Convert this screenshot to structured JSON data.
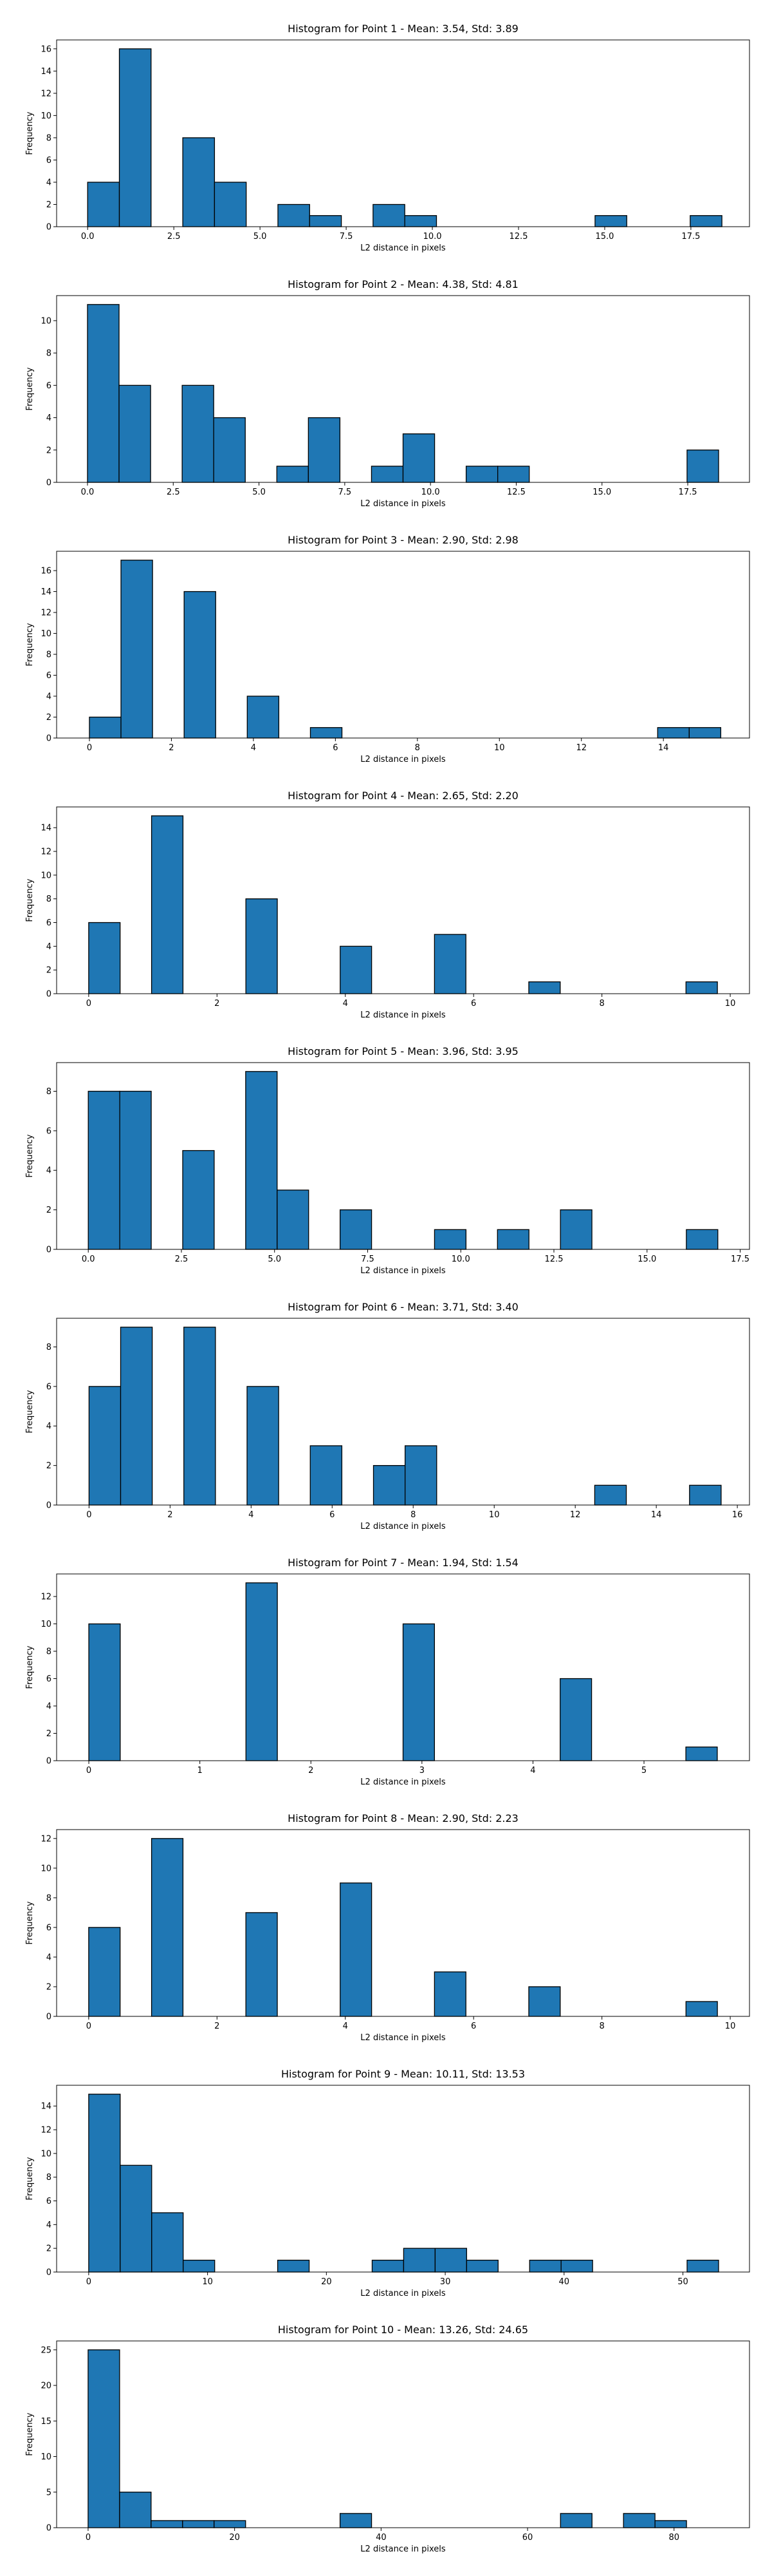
{
  "chart_data": [
    {
      "type": "bar",
      "title": "Histogram for Point 1 - Mean: 3.54, Std: 3.89",
      "xlabel": "L2 distance in pixels",
      "ylabel": "Frequency",
      "xlim": [
        -0.9,
        19.2
      ],
      "ylim": [
        0,
        16.8
      ],
      "xticks": [
        0,
        2.5,
        5,
        7.5,
        10,
        12.5,
        15,
        17.5
      ],
      "xtick_labels": [
        "0.0",
        "2.5",
        "5.0",
        "7.5",
        "10.0",
        "12.5",
        "15.0",
        "17.5"
      ],
      "yticks": [
        0,
        2,
        4,
        6,
        8,
        10,
        12,
        14,
        16
      ],
      "bin_start": 0,
      "bin_width": 0.92,
      "values": [
        4,
        16,
        0,
        8,
        4,
        0,
        2,
        1,
        0,
        2,
        1,
        0,
        0,
        0,
        0,
        0,
        1,
        0,
        0,
        1
      ]
    },
    {
      "type": "bar",
      "title": "Histogram for Point 2 - Mean: 4.38, Std: 4.81",
      "xlabel": "L2 distance in pixels",
      "ylabel": "Frequency",
      "xlim": [
        -0.9,
        19.3
      ],
      "ylim": [
        0,
        11.55
      ],
      "xticks": [
        0,
        2.5,
        5,
        7.5,
        10,
        12.5,
        15,
        17.5
      ],
      "xtick_labels": [
        "0.0",
        "2.5",
        "5.0",
        "7.5",
        "10.0",
        "12.5",
        "15.0",
        "17.5"
      ],
      "yticks": [
        0,
        2,
        4,
        6,
        8,
        10
      ],
      "bin_start": 0,
      "bin_width": 0.92,
      "values": [
        11,
        6,
        0,
        6,
        4,
        0,
        1,
        4,
        0,
        1,
        3,
        0,
        1,
        1,
        0,
        0,
        0,
        0,
        0,
        2
      ]
    },
    {
      "type": "bar",
      "title": "Histogram for Point 3 - Mean: 2.90, Std: 2.98",
      "xlabel": "L2 distance in pixels",
      "ylabel": "Frequency",
      "xlim": [
        -0.8,
        16.1
      ],
      "ylim": [
        0,
        17.85
      ],
      "xticks": [
        0,
        2,
        4,
        6,
        8,
        10,
        12,
        14
      ],
      "xtick_labels": [
        "0",
        "2",
        "4",
        "6",
        "8",
        "10",
        "12",
        "14"
      ],
      "yticks": [
        0,
        2,
        4,
        6,
        8,
        10,
        12,
        14,
        16
      ],
      "bin_start": 0,
      "bin_width": 0.77,
      "values": [
        2,
        17,
        0,
        14,
        0,
        4,
        0,
        1,
        0,
        0,
        0,
        0,
        0,
        0,
        0,
        0,
        0,
        0,
        1,
        1
      ]
    },
    {
      "type": "bar",
      "title": "Histogram for Point 4 - Mean: 2.65, Std: 2.20",
      "xlabel": "L2 distance in pixels",
      "ylabel": "Frequency",
      "xlim": [
        -0.5,
        10.3
      ],
      "ylim": [
        0,
        15.75
      ],
      "xticks": [
        0,
        2,
        4,
        6,
        8,
        10
      ],
      "xtick_labels": [
        "0",
        "2",
        "4",
        "6",
        "8",
        "10"
      ],
      "yticks": [
        0,
        2,
        4,
        6,
        8,
        10,
        12,
        14
      ],
      "bin_start": 0,
      "bin_width": 0.49,
      "values": [
        6,
        0,
        15,
        0,
        0,
        8,
        0,
        0,
        4,
        0,
        0,
        5,
        0,
        0,
        1,
        0,
        0,
        0,
        0,
        1
      ]
    },
    {
      "type": "bar",
      "title": "Histogram for Point 5 - Mean: 3.96, Std: 3.95",
      "xlabel": "L2 distance in pixels",
      "ylabel": "Frequency",
      "xlim": [
        -0.85,
        17.75
      ],
      "ylim": [
        0,
        9.45
      ],
      "xticks": [
        0,
        2.5,
        5,
        7.5,
        10,
        12.5,
        15,
        17.5
      ],
      "xtick_labels": [
        "0.0",
        "2.5",
        "5.0",
        "7.5",
        "10.0",
        "12.5",
        "15.0",
        "17.5"
      ],
      "yticks": [
        0,
        2,
        4,
        6,
        8
      ],
      "bin_start": 0,
      "bin_width": 0.845,
      "values": [
        8,
        8,
        0,
        5,
        0,
        9,
        3,
        0,
        2,
        0,
        0,
        1,
        0,
        1,
        0,
        2,
        0,
        0,
        0,
        1
      ]
    },
    {
      "type": "bar",
      "title": "Histogram for Point 6 - Mean: 3.71, Std: 3.40",
      "xlabel": "L2 distance in pixels",
      "ylabel": "Frequency",
      "xlim": [
        -0.8,
        16.3
      ],
      "ylim": [
        0,
        9.45
      ],
      "xticks": [
        0,
        2,
        4,
        6,
        8,
        10,
        12,
        14,
        16
      ],
      "xtick_labels": [
        "0",
        "2",
        "4",
        "6",
        "8",
        "10",
        "12",
        "14",
        "16"
      ],
      "yticks": [
        0,
        2,
        4,
        6,
        8
      ],
      "bin_start": 0,
      "bin_width": 0.78,
      "values": [
        6,
        9,
        0,
        9,
        0,
        6,
        0,
        3,
        0,
        2,
        3,
        0,
        0,
        0,
        0,
        0,
        1,
        0,
        0,
        1
      ]
    },
    {
      "type": "bar",
      "title": "Histogram for Point 7 - Mean: 1.94, Std: 1.54",
      "xlabel": "L2 distance in pixels",
      "ylabel": "Frequency",
      "xlim": [
        -0.29,
        5.95
      ],
      "ylim": [
        0,
        13.65
      ],
      "xticks": [
        0,
        1,
        2,
        3,
        4,
        5
      ],
      "xtick_labels": [
        "0",
        "1",
        "2",
        "3",
        "4",
        "5"
      ],
      "yticks": [
        0,
        2,
        4,
        6,
        8,
        10,
        12
      ],
      "bin_start": 0,
      "bin_width": 0.283,
      "values": [
        10,
        0,
        0,
        0,
        0,
        13,
        0,
        0,
        0,
        0,
        10,
        0,
        0,
        0,
        0,
        6,
        0,
        0,
        0,
        1
      ]
    },
    {
      "type": "bar",
      "title": "Histogram for Point 8 - Mean: 2.90, Std: 2.23",
      "xlabel": "L2 distance in pixels",
      "ylabel": "Frequency",
      "xlim": [
        -0.5,
        10.3
      ],
      "ylim": [
        0,
        12.6
      ],
      "xticks": [
        0,
        2,
        4,
        6,
        8,
        10
      ],
      "xtick_labels": [
        "0",
        "2",
        "4",
        "6",
        "8",
        "10"
      ],
      "yticks": [
        0,
        2,
        4,
        6,
        8,
        10,
        12
      ],
      "bin_start": 0,
      "bin_width": 0.49,
      "values": [
        6,
        0,
        12,
        0,
        0,
        7,
        0,
        0,
        9,
        0,
        0,
        3,
        0,
        0,
        2,
        0,
        0,
        0,
        0,
        1
      ]
    },
    {
      "type": "bar",
      "title": "Histogram for Point 9 - Mean: 10.11, Std: 13.53",
      "xlabel": "L2 distance in pixels",
      "ylabel": "Frequency",
      "xlim": [
        -2.7,
        55.6
      ],
      "ylim": [
        0,
        15.75
      ],
      "xticks": [
        0,
        10,
        20,
        30,
        40,
        50
      ],
      "xtick_labels": [
        "0",
        "10",
        "20",
        "30",
        "40",
        "50"
      ],
      "yticks": [
        0,
        2,
        4,
        6,
        8,
        10,
        12,
        14
      ],
      "bin_start": 0,
      "bin_width": 2.65,
      "values": [
        15,
        9,
        5,
        1,
        0,
        0,
        1,
        0,
        0,
        1,
        2,
        2,
        1,
        0,
        1,
        1,
        0,
        0,
        0,
        1
      ]
    },
    {
      "type": "bar",
      "title": "Histogram for Point 10 - Mean: 13.26, Std: 24.65",
      "xlabel": "L2 distance in pixels",
      "ylabel": "Frequency",
      "xlim": [
        -4.3,
        90.3
      ],
      "ylim": [
        0,
        26.25
      ],
      "xticks": [
        0,
        20,
        40,
        60,
        80
      ],
      "xtick_labels": [
        "0",
        "20",
        "40",
        "60",
        "80"
      ],
      "yticks": [
        0,
        5,
        10,
        15,
        20,
        25
      ],
      "bin_start": 0,
      "bin_width": 4.3,
      "values": [
        25,
        5,
        1,
        1,
        1,
        0,
        0,
        0,
        2,
        0,
        0,
        0,
        0,
        0,
        0,
        2,
        0,
        2,
        1,
        0
      ]
    }
  ],
  "style": {
    "bar_fill": "#1f77b4",
    "bar_edge": "#000000",
    "axis_color": "#000000"
  }
}
